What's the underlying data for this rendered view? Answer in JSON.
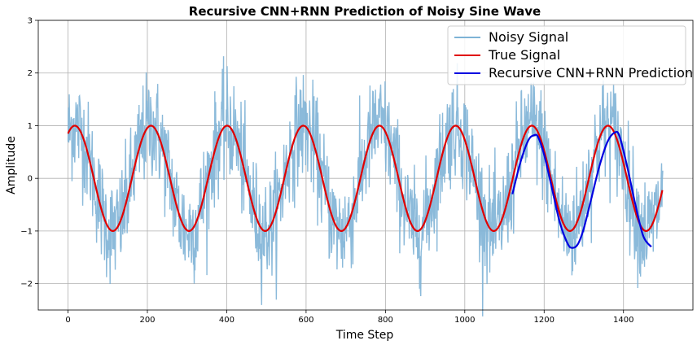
{
  "chart_data": {
    "type": "line",
    "title": "Recursive CNN+RNN Prediction of Noisy Sine Wave",
    "xlabel": "Time Step",
    "ylabel": "Amplitude",
    "xlim": [
      -75,
      1575
    ],
    "ylim": [
      -2.5,
      3.0
    ],
    "xticks": [
      0,
      200,
      400,
      600,
      800,
      1000,
      1200,
      1400
    ],
    "yticks": [
      -2,
      -1,
      0,
      1,
      2,
      3
    ],
    "grid": true,
    "legend": "top-right",
    "series": [
      {
        "name": "Noisy Signal",
        "color": "#7eb3d6",
        "description": "true signal plus Gaussian noise (std ~0.5), sampled at every time step 0-1499",
        "x_range": [
          0,
          1499
        ],
        "noise_std": 0.5
      },
      {
        "name": "True Signal",
        "color": "#e00000",
        "x": [
          0,
          20,
          116,
          210,
          307,
          402,
          499,
          595,
          691,
          787,
          883,
          978,
          1075,
          1171,
          1267,
          1363,
          1459,
          1499
        ],
        "y": [
          0.85,
          1.0,
          -1.0,
          1.0,
          -1.0,
          1.0,
          -1.0,
          1.0,
          -1.0,
          1.0,
          -1.0,
          1.0,
          -1.0,
          1.0,
          -1.0,
          1.0,
          -1.0,
          -0.27
        ],
        "period": 192,
        "amplitude": 1.0
      },
      {
        "name": "Recursive CNN+RNN Prediction",
        "color": "#0000e0",
        "x": [
          1120,
          1140,
          1160,
          1175,
          1185,
          1200,
          1220,
          1240,
          1260,
          1272,
          1285,
          1300,
          1320,
          1340,
          1360,
          1378,
          1390,
          1410,
          1430,
          1450,
          1470
        ],
        "y": [
          -0.3,
          0.3,
          0.72,
          0.82,
          0.78,
          0.45,
          -0.2,
          -0.85,
          -1.25,
          -1.32,
          -1.25,
          -0.95,
          -0.35,
          0.25,
          0.7,
          0.87,
          0.8,
          0.2,
          -0.5,
          -1.1,
          -1.3
        ]
      }
    ]
  }
}
